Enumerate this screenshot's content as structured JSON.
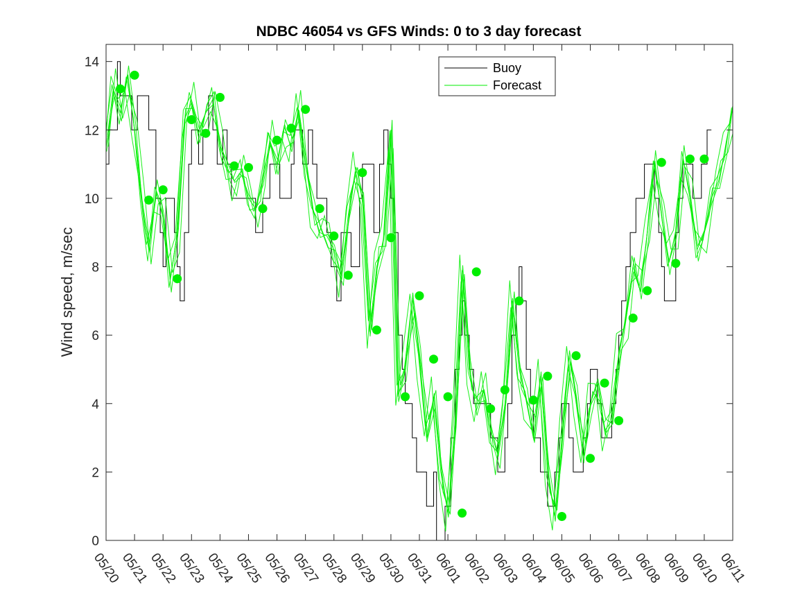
{
  "chart_data": {
    "type": "line",
    "title": "NDBC 46054 vs GFS Winds: 0 to 3 day forecast",
    "xlabel": "",
    "ylabel": "Wind speed, m/sec",
    "ylim": [
      0,
      14.5
    ],
    "yticks": [
      0,
      2,
      4,
      6,
      8,
      10,
      12,
      14
    ],
    "xlim": [
      0,
      22
    ],
    "xticks": [
      "05/20",
      "05/21",
      "05/22",
      "05/23",
      "05/24",
      "05/25",
      "05/26",
      "05/27",
      "05/28",
      "05/29",
      "05/30",
      "05/31",
      "06/01",
      "06/02",
      "06/03",
      "06/04",
      "06/05",
      "06/06",
      "06/07",
      "06/08",
      "06/09",
      "06/10",
      "06/11"
    ],
    "grid": false,
    "legend_position": "top-right",
    "colors": {
      "buoy": "#000000",
      "forecast": "#00ee00"
    },
    "series": [
      {
        "name": "Buoy",
        "x_days_from_0520": [
          0,
          0.1,
          0.25,
          0.4,
          0.5,
          0.6,
          0.75,
          0.9,
          1.0,
          1.1,
          1.25,
          1.4,
          1.5,
          1.6,
          1.75,
          1.9,
          2.0,
          2.1,
          2.25,
          2.4,
          2.5,
          2.6,
          2.75,
          2.9,
          3.0,
          3.1,
          3.25,
          3.4,
          3.5,
          3.6,
          3.75,
          3.9,
          4.0,
          4.1,
          4.25,
          4.4,
          4.5,
          4.6,
          4.75,
          4.9,
          5.0,
          5.1,
          5.25,
          5.4,
          5.5,
          5.6,
          5.75,
          5.9,
          6.0,
          6.1,
          6.25,
          6.4,
          6.5,
          6.6,
          6.75,
          6.9,
          7.0,
          7.1,
          7.25,
          7.4,
          7.5,
          7.6,
          7.75,
          7.9,
          8.0,
          8.1,
          8.25,
          8.4,
          8.5,
          8.6,
          8.75,
          8.9,
          9.0,
          9.1,
          9.25,
          9.4,
          9.5,
          9.6,
          9.75,
          9.9,
          10.0,
          10.1,
          10.25,
          10.4,
          10.5,
          10.6,
          10.75,
          10.9,
          11.0,
          11.1,
          11.25,
          11.4,
          11.5,
          11.6,
          11.75,
          11.9,
          12.0,
          12.1,
          12.25,
          12.4,
          12.5,
          12.6,
          12.75,
          12.9,
          13.0,
          13.1,
          13.25,
          13.4,
          13.5,
          13.6,
          13.75,
          13.9,
          14.0,
          14.1,
          14.25,
          14.4,
          14.5,
          14.6,
          14.75,
          14.9,
          15.0,
          15.1,
          15.25,
          15.4,
          15.5,
          15.6,
          15.75,
          15.9,
          16.0,
          16.1,
          16.25,
          16.4,
          16.5,
          16.6,
          16.75,
          16.9,
          17.0,
          17.1,
          17.25,
          17.4,
          17.5,
          17.6,
          17.75,
          17.9,
          18.0,
          18.1,
          18.25,
          18.4,
          18.5,
          18.6,
          18.75,
          18.9,
          19.0,
          19.1,
          19.25,
          19.4,
          19.5,
          19.6,
          19.75,
          19.9,
          20.0,
          20.1,
          20.25,
          20.4,
          20.5,
          20.6,
          20.75,
          20.9,
          21.0,
          21.1,
          21.25,
          21.4,
          21.5,
          21.6,
          21.75,
          21.9,
          22.0
        ],
        "values": [
          11,
          12,
          12,
          14,
          13,
          13,
          13,
          12,
          12,
          13,
          13,
          13,
          12,
          12,
          10,
          9,
          8,
          10,
          10,
          9,
          8,
          7,
          9,
          11,
          12,
          12,
          11,
          12,
          12,
          13,
          12,
          11,
          11,
          12,
          11,
          10,
          10,
          10,
          10,
          10,
          10,
          10,
          9,
          9,
          10,
          10,
          11,
          11,
          11,
          10,
          10,
          10,
          11,
          12,
          12,
          11,
          11,
          12,
          11,
          10,
          10,
          10,
          9,
          8,
          8,
          7,
          9,
          9,
          9,
          8,
          8,
          10,
          11,
          11,
          11,
          9,
          9,
          11,
          12,
          11,
          10,
          9,
          6,
          5,
          4,
          4,
          3,
          2,
          2,
          2,
          1,
          1,
          2,
          0,
          0,
          1,
          1,
          3,
          5,
          6,
          7,
          6,
          5,
          4,
          4,
          4,
          4,
          4,
          3,
          3,
          2,
          2,
          3,
          4,
          6,
          7,
          8,
          7,
          5,
          4,
          3,
          3,
          2,
          2,
          1,
          1,
          2,
          3,
          4,
          4,
          3,
          2,
          2,
          2,
          3,
          4,
          5,
          5,
          4,
          3,
          3,
          3,
          4,
          5,
          6,
          7,
          8,
          9,
          9,
          10,
          10,
          11,
          11,
          11,
          10,
          9,
          8,
          7,
          7,
          7,
          9,
          10,
          11,
          11,
          11,
          10,
          10,
          11,
          11,
          12
        ]
      },
      {
        "name": "Forecast",
        "x_days_from_0520": [
          0,
          0.25,
          0.5,
          0.75,
          1.0,
          1.25,
          1.5,
          1.75,
          2.0,
          2.25,
          2.5,
          2.75,
          3.0,
          3.25,
          3.5,
          3.75,
          4.0,
          4.25,
          4.5,
          4.75,
          5.0,
          5.25,
          5.5,
          5.75,
          6.0,
          6.25,
          6.5,
          6.75,
          7.0,
          7.25,
          7.5,
          7.75,
          8.0,
          8.25,
          8.5,
          8.75,
          9.0,
          9.25,
          9.5,
          9.75,
          10.0,
          10.25,
          10.5,
          10.75,
          11.0,
          11.25,
          11.5,
          11.75,
          12.0,
          12.25,
          12.5,
          12.75,
          13.0,
          13.25,
          13.5,
          13.75,
          14.0,
          14.25,
          14.5,
          14.75,
          15.0,
          15.25,
          15.5,
          15.75,
          16.0,
          16.25,
          16.5,
          16.75,
          17.0,
          17.25,
          17.5,
          17.75,
          18.0,
          18.25,
          18.5,
          18.75,
          19.0,
          19.25,
          19.5,
          19.75,
          20.0,
          20.25,
          20.5,
          20.75,
          21.0,
          21.25,
          21.5,
          21.75,
          22.0
        ],
        "values": [
          11.5,
          13.2,
          12.5,
          13.6,
          12.0,
          9.9,
          8.5,
          10.2,
          9.5,
          7.6,
          9.0,
          12.3,
          12.8,
          11.9,
          12.5,
          12.9,
          11.5,
          10.9,
          10.5,
          10.8,
          10.0,
          9.7,
          10.5,
          11.7,
          11.0,
          12.1,
          11.5,
          12.6,
          11.0,
          9.7,
          9.0,
          8.9,
          8.5,
          7.7,
          9.5,
          10.8,
          10.0,
          6.1,
          8.0,
          8.8,
          12.0,
          4.2,
          5.0,
          7.1,
          5.3,
          3.0,
          4.2,
          2.0,
          0.8,
          3.5,
          7.9,
          5.0,
          3.8,
          4.4,
          3.2,
          2.5,
          4.0,
          7.0,
          5.0,
          4.1,
          3.0,
          4.8,
          2.0,
          0.7,
          3.0,
          5.4,
          4.2,
          2.4,
          4.0,
          4.6,
          3.2,
          3.5,
          5.5,
          6.5,
          8.0,
          7.3,
          9.0,
          11.1,
          9.5,
          8.1,
          9.0,
          11.2,
          10.0,
          8.5,
          9.0,
          10.0,
          10.5,
          11.5,
          12.7
        ]
      },
      {
        "name": "",
        "marker": "circle",
        "x_days_from_0520": [
          0.5,
          1.0,
          1.5,
          2.0,
          2.5,
          3.0,
          3.5,
          4.0,
          4.5,
          5.0,
          5.5,
          6.0,
          6.5,
          7.0,
          7.5,
          8.0,
          8.5,
          9.0,
          9.5,
          10.0,
          10.5,
          11.0,
          11.5,
          12.0,
          12.5,
          13.0,
          13.5,
          14.0,
          14.5,
          15.0,
          15.5,
          16.0,
          16.5,
          17.0,
          17.5,
          18.0,
          18.5,
          19.0,
          19.5,
          20.0,
          20.5,
          21.0
        ],
        "values": [
          13.2,
          13.6,
          9.95,
          10.25,
          7.65,
          12.3,
          11.9,
          12.95,
          10.95,
          10.9,
          9.7,
          11.7,
          12.05,
          12.6,
          9.7,
          8.9,
          7.75,
          10.75,
          6.15,
          8.85,
          4.2,
          7.15,
          5.3,
          4.2,
          0.8,
          7.85,
          3.85,
          4.4,
          7.0,
          4.1,
          4.8,
          0.7,
          5.4,
          2.4,
          4.6,
          3.5,
          6.5,
          7.3,
          11.05,
          8.1,
          11.15,
          11.15
        ]
      }
    ]
  }
}
